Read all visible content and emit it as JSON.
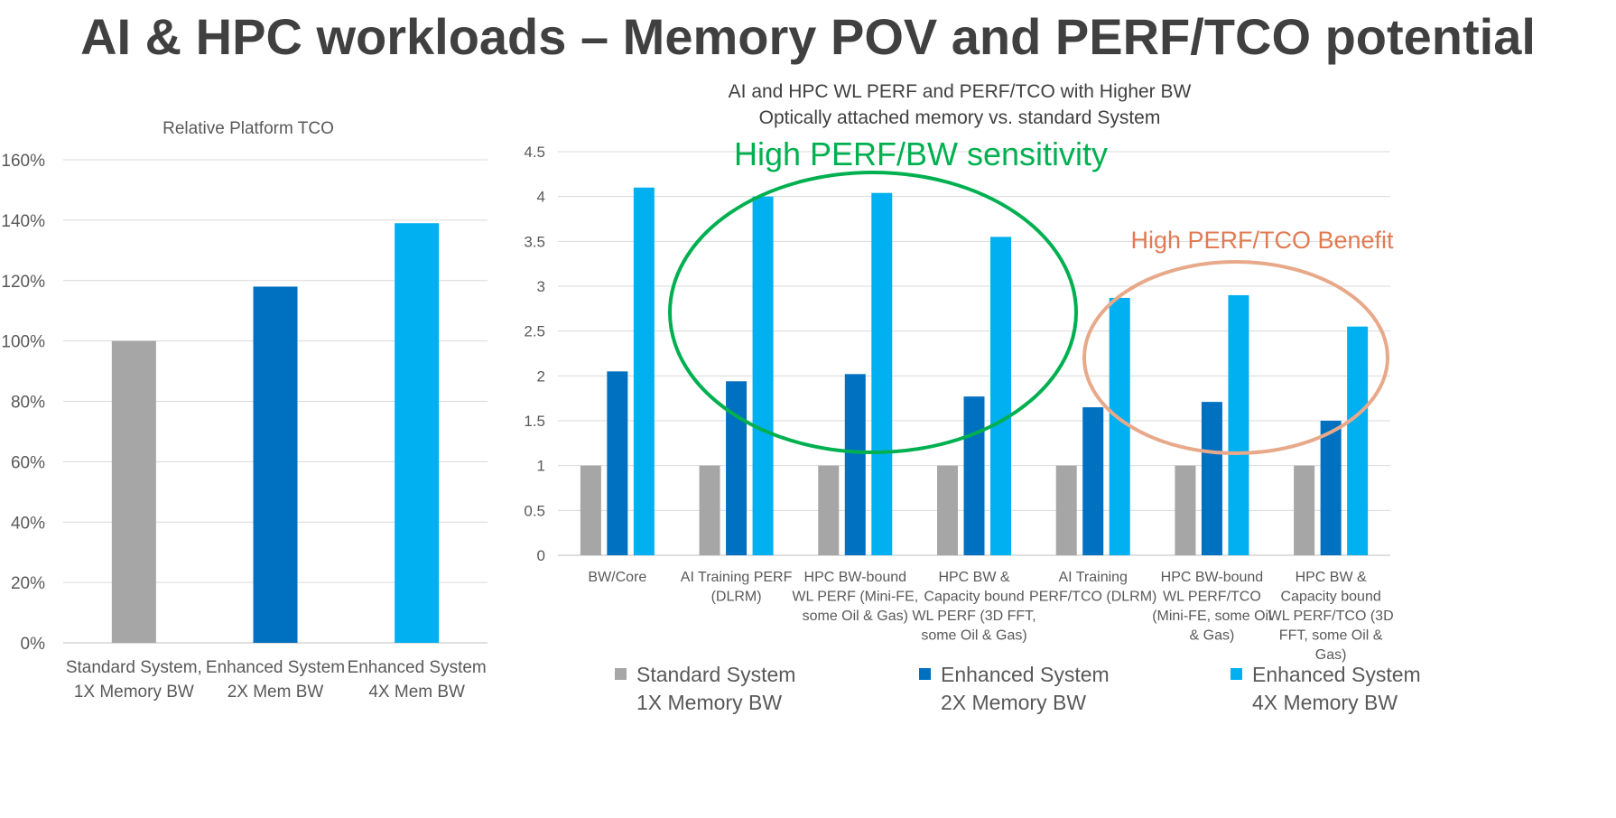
{
  "slide_title": "AI & HPC workloads – Memory POV and PERF/TCO potential",
  "colors": {
    "gray": "#A6A6A6",
    "dark_blue": "#0070C0",
    "light_blue": "#00B0F0",
    "green_annotation": "#00B050",
    "orange_annotation": "#E07B53",
    "orange_ellipse": "#E8A98A",
    "grid": "#D9D9D9",
    "text": "#595959"
  },
  "chart_data": [
    {
      "type": "bar",
      "title": "Relative Platform TCO",
      "categories": [
        [
          "Standard System,",
          "1X Memory BW"
        ],
        [
          "Enhanced System",
          "2X Mem BW"
        ],
        [
          "Enhanced System",
          "4X Mem BW"
        ]
      ],
      "values": [
        1.0,
        1.18,
        1.39
      ],
      "bar_colors": [
        "#A6A6A6",
        "#0070C0",
        "#00B0F0"
      ],
      "yticks": [
        "0%",
        "20%",
        "40%",
        "60%",
        "80%",
        "100%",
        "120%",
        "140%",
        "160%"
      ],
      "ylim": [
        0,
        1.6
      ],
      "grid": true
    },
    {
      "type": "bar",
      "title": [
        "AI and HPC WL PERF and PERF/TCO with Higher BW",
        "Optically attached memory vs. standard System"
      ],
      "categories": [
        [
          "BW/Core"
        ],
        [
          "AI Training PERF",
          "(DLRM)"
        ],
        [
          "HPC BW-bound",
          "WL PERF (Mini-FE,",
          "some Oil & Gas)"
        ],
        [
          "HPC BW &",
          "Capacity bound",
          "WL PERF (3D FFT,",
          "some Oil & Gas)"
        ],
        [
          "AI Training",
          "PERF/TCO (DLRM)"
        ],
        [
          "HPC BW-bound",
          "WL PERF/TCO",
          "(Mini-FE, some Oil",
          "& Gas)"
        ],
        [
          "HPC BW &",
          "Capacity bound",
          "WL PERF/TCO (3D",
          "FFT, some Oil &",
          "Gas)"
        ]
      ],
      "series": [
        {
          "legend": [
            "Standard System",
            "1X Memory BW"
          ],
          "color": "#A6A6A6",
          "values": [
            1,
            1,
            1,
            1,
            1,
            1,
            1
          ]
        },
        {
          "legend": [
            "Enhanced System",
            "2X Memory BW"
          ],
          "color": "#0070C0",
          "values": [
            2.05,
            1.94,
            2.02,
            1.77,
            1.65,
            1.71,
            1.5
          ]
        },
        {
          "legend": [
            "Enhanced System",
            "4X Memory BW"
          ],
          "color": "#00B0F0",
          "values": [
            4.1,
            4.0,
            4.04,
            3.55,
            2.87,
            2.9,
            2.55
          ]
        }
      ],
      "yticks": [
        "0",
        "0.5",
        "1",
        "1.5",
        "2",
        "2.5",
        "3",
        "3.5",
        "4",
        "4.5"
      ],
      "ylim": [
        0,
        4.5
      ],
      "grid": true,
      "legend_position": "bottom",
      "annotations": [
        {
          "text": "High PERF/BW sensitivity",
          "color": "#00B050"
        },
        {
          "text": "High PERF/TCO Benefit",
          "color": "#E07B53"
        }
      ]
    }
  ]
}
